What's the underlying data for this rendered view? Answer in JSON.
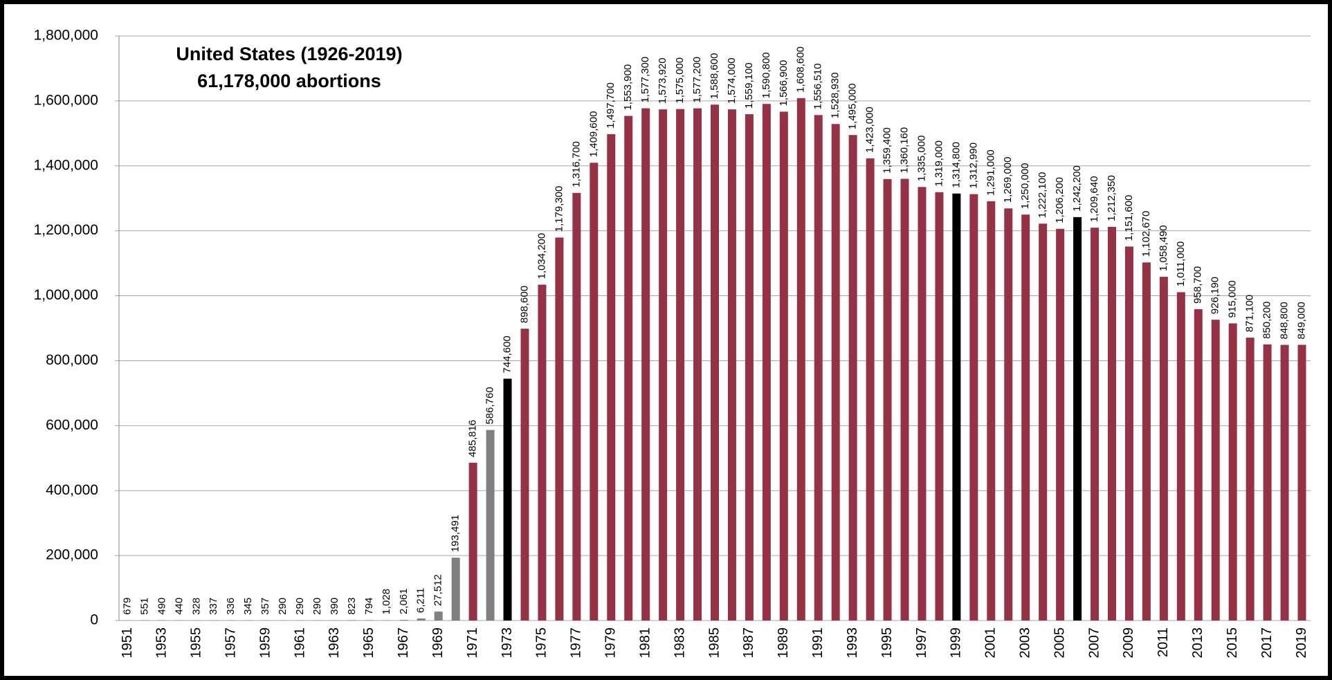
{
  "chart_data": {
    "type": "bar",
    "title": "United States (1926-2019)",
    "subtitle": "61,178,000 abortions",
    "categories": [
      "1951",
      null,
      "1953",
      null,
      "1955",
      null,
      "1957",
      null,
      "1959",
      null,
      "1961",
      null,
      "1963",
      null,
      "1965",
      null,
      "1967",
      null,
      "1969",
      null,
      "1971",
      null,
      "1973",
      null,
      "1975",
      null,
      "1977",
      null,
      "1979",
      null,
      "1981",
      null,
      "1983",
      null,
      "1985",
      null,
      "1987",
      null,
      "1989",
      null,
      "1991",
      null,
      "1993",
      null,
      "1995",
      null,
      "1997",
      null,
      "1999",
      null,
      "2001",
      null,
      "2003",
      null,
      "2005",
      null,
      "2007",
      null,
      "2009",
      null,
      "2011",
      null,
      "2013",
      null,
      "2015",
      null,
      "2017",
      null,
      "2019"
    ],
    "values": [
      679,
      551,
      490,
      440,
      328,
      337,
      336,
      345,
      357,
      290,
      290,
      290,
      390,
      823,
      794,
      1028,
      2061,
      6211,
      27512,
      193491,
      485816,
      586760,
      744600,
      898600,
      1034200,
      1179300,
      1316700,
      1409600,
      1497700,
      1553900,
      1577300,
      1573920,
      1575000,
      1577200,
      1588600,
      1574000,
      1559100,
      1590800,
      1566900,
      1608600,
      1556510,
      1528930,
      1495000,
      1423000,
      1359400,
      1360160,
      1335000,
      1319000,
      1314800,
      1312990,
      1291000,
      1269000,
      1250000,
      1222100,
      1206200,
      1242200,
      1209640,
      1212350,
      1151600,
      1102670,
      1058490,
      1011000,
      958700,
      926190,
      915000,
      871100,
      850200,
      848800,
      849000
    ],
    "value_labels": [
      "679",
      "551",
      "490",
      "440",
      "328",
      "337",
      "336",
      "345",
      "357",
      "290",
      "290",
      "290",
      "390",
      "823",
      "794",
      "1,028",
      "2,061",
      "6,211",
      "27,512",
      "193,491",
      "485,816",
      "586,760",
      "744,600",
      "898,600",
      "1,034,200",
      "1,179,300",
      "1,316,700",
      "1,409,600",
      "1,497,700",
      "1,553,900",
      "1,577,300",
      "1,573,920",
      "1,575,000",
      "1,577,200",
      "1,588,600",
      "1,574,000",
      "1,559,100",
      "1,590,800",
      "1,566,900",
      "1,608,600",
      "1,556,510",
      "1,528,930",
      "1,495,000",
      "1,423,000",
      "1,359,400",
      "1,360,160",
      "1,335,000",
      "1,319,000",
      "1,314,800",
      "1,312,990",
      "1,291,000",
      "1,269,000",
      "1,250,000",
      "1,222,100",
      "1,206,200",
      "1,242,200",
      "1,209,640",
      "1,212,350",
      "1,151,600",
      "1,102,670",
      "1,058,490",
      "1,011,000",
      "958,700",
      "926,190",
      "915,000",
      "871,100",
      "850,200",
      "848,800",
      "849,000"
    ],
    "colors": [
      "#808080",
      "#953245",
      "#953245",
      "#953245",
      "#953245",
      "#953245",
      "#953245",
      "#953245",
      "#953245",
      "#953245",
      "#953245",
      "#953245",
      "#953245",
      "#953245",
      "#953245",
      "#808080",
      "#808080",
      "#808080",
      "#808080",
      "#808080",
      "#953245",
      "#808080",
      "#000000",
      "#953245",
      "#953245",
      "#953245",
      "#953245",
      "#953245",
      "#953245",
      "#953245",
      "#953245",
      "#953245",
      "#953245",
      "#953245",
      "#953245",
      "#953245",
      "#953245",
      "#953245",
      "#953245",
      "#953245",
      "#953245",
      "#953245",
      "#953245",
      "#953245",
      "#953245",
      "#953245",
      "#953245",
      "#953245",
      "#000000",
      "#953245",
      "#953245",
      "#953245",
      "#953245",
      "#953245",
      "#953245",
      "#000000",
      "#953245",
      "#953245",
      "#953245",
      "#953245",
      "#953245",
      "#953245",
      "#953245",
      "#953245",
      "#953245",
      "#953245",
      "#953245",
      "#953245",
      "#953245"
    ],
    "ylim": [
      0,
      1800000
    ],
    "yticks": [
      0,
      {
        "value": 200000,
        "label": "200,000"
      },
      {
        "value": 400000,
        "label": "400,000"
      },
      {
        "value": 600000,
        "label": "600,000"
      },
      {
        "value": 800000,
        "label": "800,000"
      },
      {
        "value": 1000000,
        "label": "1,000,000"
      },
      {
        "value": 1200000,
        "label": "1,200,000"
      },
      {
        "value": 1400000,
        "label": "1,400,000"
      },
      {
        "value": 1600000,
        "label": "1,600,000"
      },
      {
        "value": 1800000,
        "label": "1,800,000"
      }
    ],
    "grid": true
  }
}
